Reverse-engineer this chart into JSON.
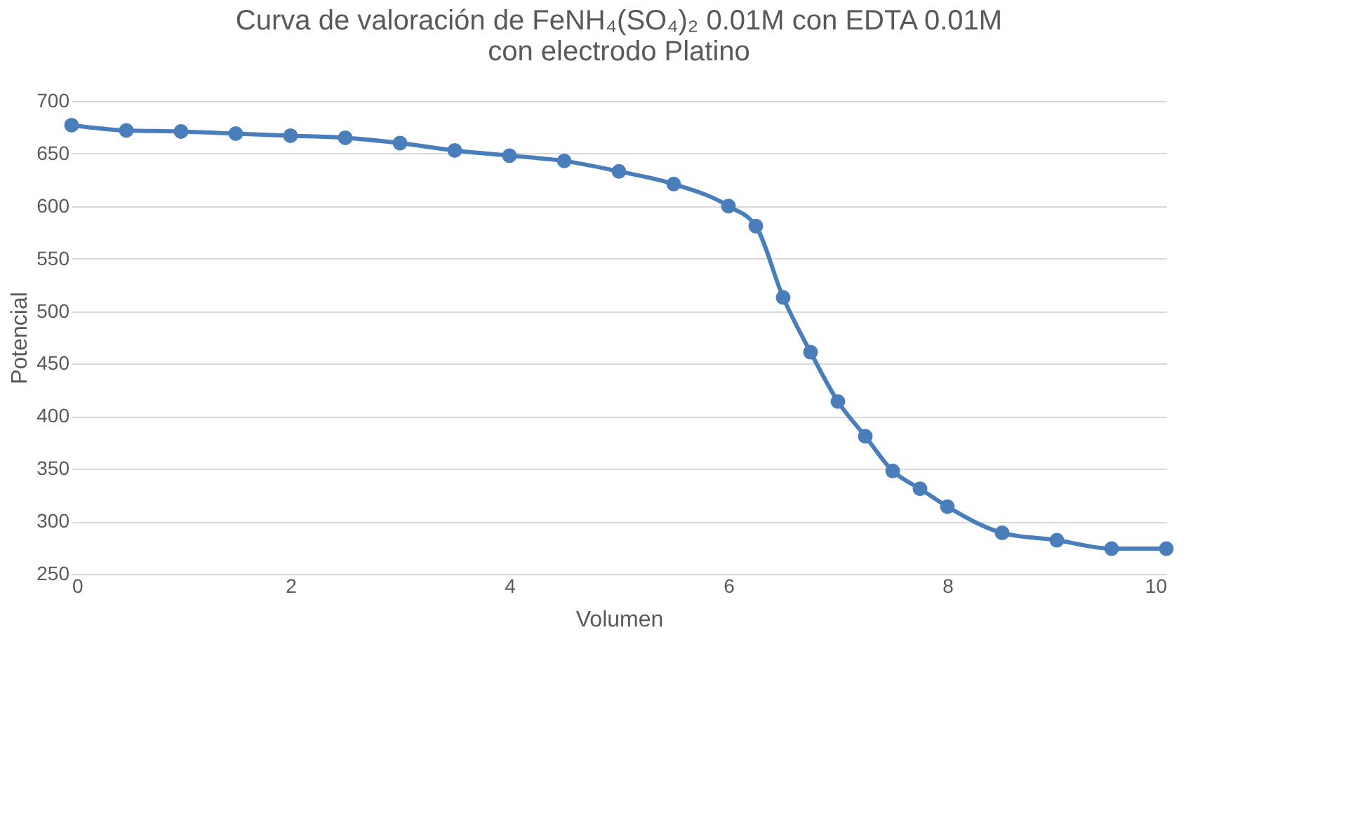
{
  "chart_data": {
    "type": "line",
    "title": [
      "Curva de valoración de FeNH₄(SO₄)₂   0.01M con EDTA 0.01M",
      "con electrodo Platino"
    ],
    "xlabel": "Volumen",
    "ylabel": "Potencial",
    "x": [
      0,
      0.5,
      1,
      1.5,
      2,
      2.5,
      3,
      3.5,
      4,
      4.5,
      5,
      5.5,
      6,
      6.25,
      6.5,
      6.75,
      7,
      7.25,
      7.5,
      7.75,
      8,
      8.5,
      9,
      9.5,
      10
    ],
    "series": [
      {
        "color": "#4a7ebb",
        "values": [
          677,
          672,
          671,
          669,
          667,
          665,
          660,
          653,
          648,
          643,
          633,
          621,
          600,
          581,
          513,
          461,
          414,
          381,
          348,
          331,
          314,
          289,
          282,
          274,
          274
        ]
      }
    ],
    "xlim": [
      0,
      10
    ],
    "xticks": [
      0,
      2,
      4,
      6,
      8,
      10
    ],
    "ylim": [
      250,
      700
    ],
    "yticks": [
      250,
      300,
      350,
      400,
      450,
      500,
      550,
      600,
      650,
      700
    ],
    "grid": "y",
    "marker": "circle",
    "line_style": "solid"
  }
}
